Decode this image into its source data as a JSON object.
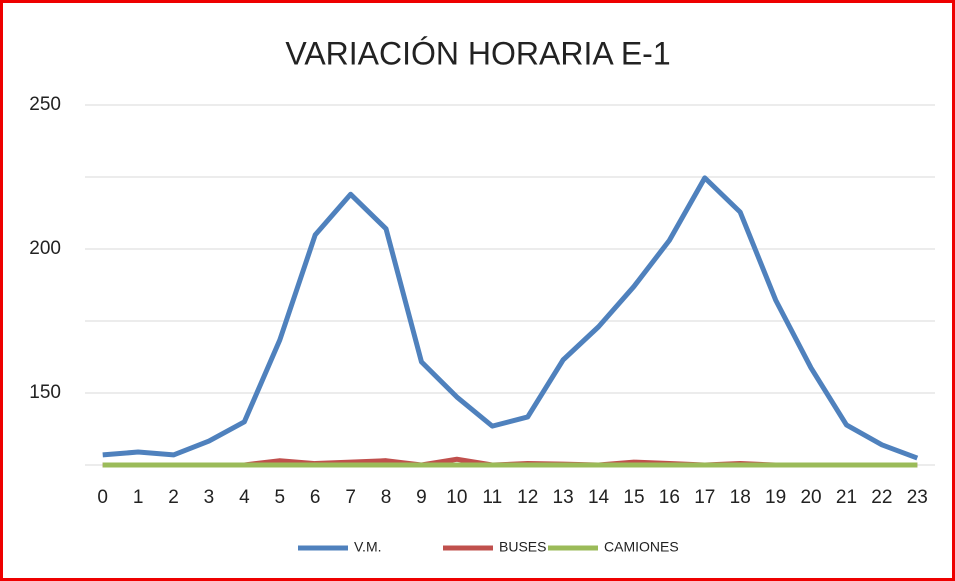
{
  "chart_data": {
    "type": "line",
    "title": "VARIACIÓN HORARIA  E-1",
    "categories": [
      "0",
      "1",
      "2",
      "3",
      "4",
      "5",
      "6",
      "7",
      "8",
      "9",
      "10",
      "11",
      "12",
      "13",
      "14",
      "15",
      "16",
      "17",
      "18",
      "19",
      "20",
      "21",
      "22",
      "23"
    ],
    "series": [
      {
        "name": "V.M.",
        "color": "#4f81bd",
        "values": [
          128.5,
          129.5,
          128.5,
          133.3,
          140,
          168.4,
          204.9,
          219,
          207,
          160.8,
          148.6,
          138.5,
          141.7,
          161.5,
          173,
          187,
          203,
          224.7,
          212.8,
          182.3,
          158.7,
          138.9,
          132,
          127.4
        ]
      },
      {
        "name": "BUSES",
        "color": "#c0504d",
        "values": [
          125,
          125,
          125,
          125,
          125,
          126.5,
          125.5,
          126,
          126.5,
          125,
          127,
          125,
          125.5,
          125.3,
          125,
          126,
          125.5,
          125,
          125.5,
          125,
          125,
          125,
          125,
          125
        ]
      },
      {
        "name": "CAMIONES",
        "color": "#9bbb59",
        "values": [
          125,
          125,
          125,
          125,
          125,
          125,
          125,
          125,
          125,
          125,
          125,
          125,
          125,
          125,
          125,
          125,
          125,
          125,
          125,
          125,
          125,
          125,
          125,
          125
        ]
      }
    ],
    "ylim": [
      125,
      250
    ],
    "yticks": [
      150,
      200,
      250
    ],
    "minor_yticks": [
      175,
      225
    ],
    "grid": true,
    "legend": "bottom"
  }
}
